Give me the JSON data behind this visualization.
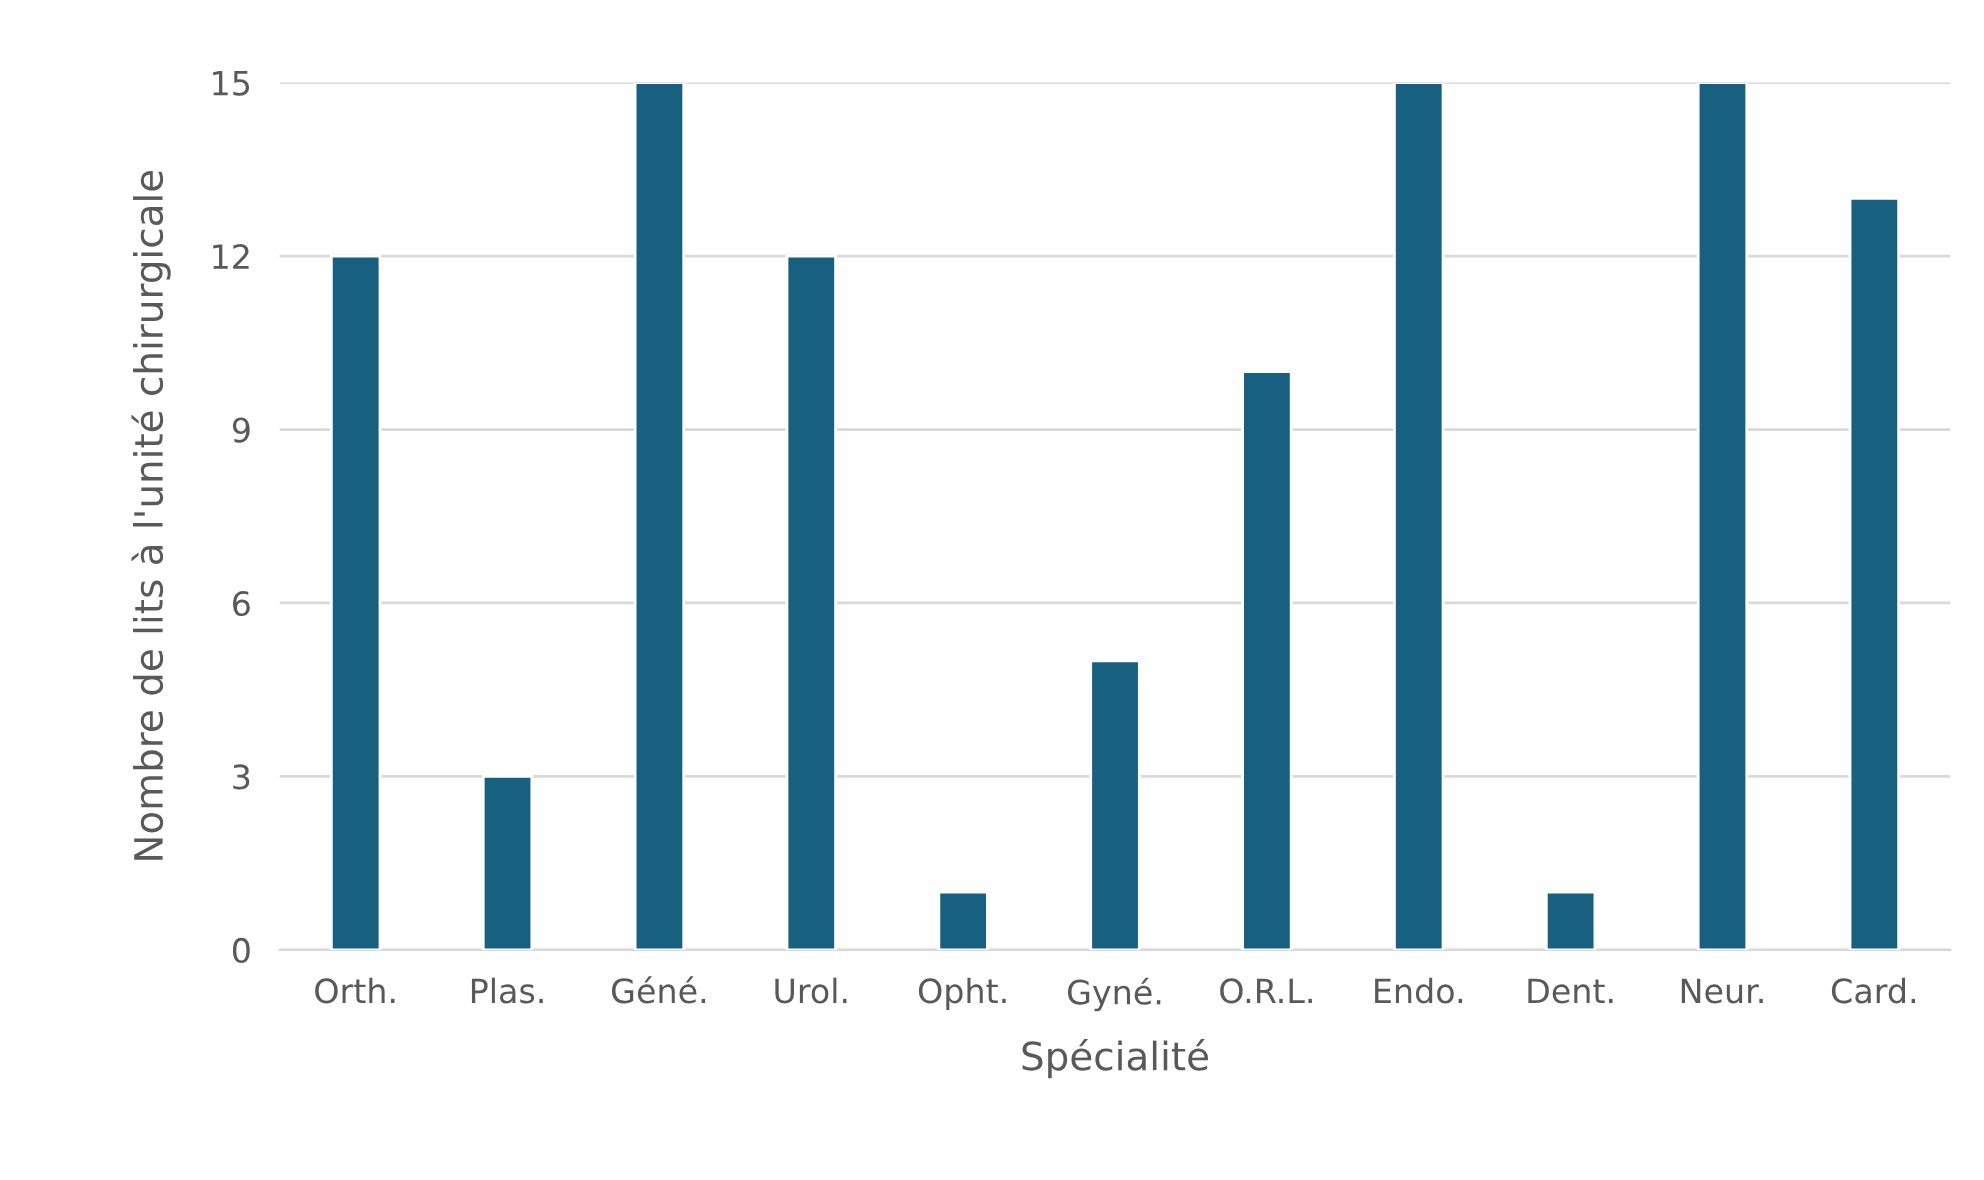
{
  "chart_data": {
    "type": "bar",
    "xlabel": "Spécialité",
    "ylabel": "Nombre de lits à l'unité chirurgicale",
    "categories": [
      "Orth.",
      "Plas.",
      "Géné.",
      "Urol.",
      "Opht.",
      "Gyné.",
      "O.R.L.",
      "Endo.",
      "Dent.",
      "Neur.",
      "Card."
    ],
    "values": [
      12,
      3,
      15,
      12,
      1,
      5,
      10,
      15,
      1,
      15,
      13
    ],
    "color": "#17607f",
    "ylim": [
      0,
      15
    ],
    "yticks": [
      0,
      3,
      6,
      9,
      12,
      15
    ],
    "grid": "y"
  }
}
